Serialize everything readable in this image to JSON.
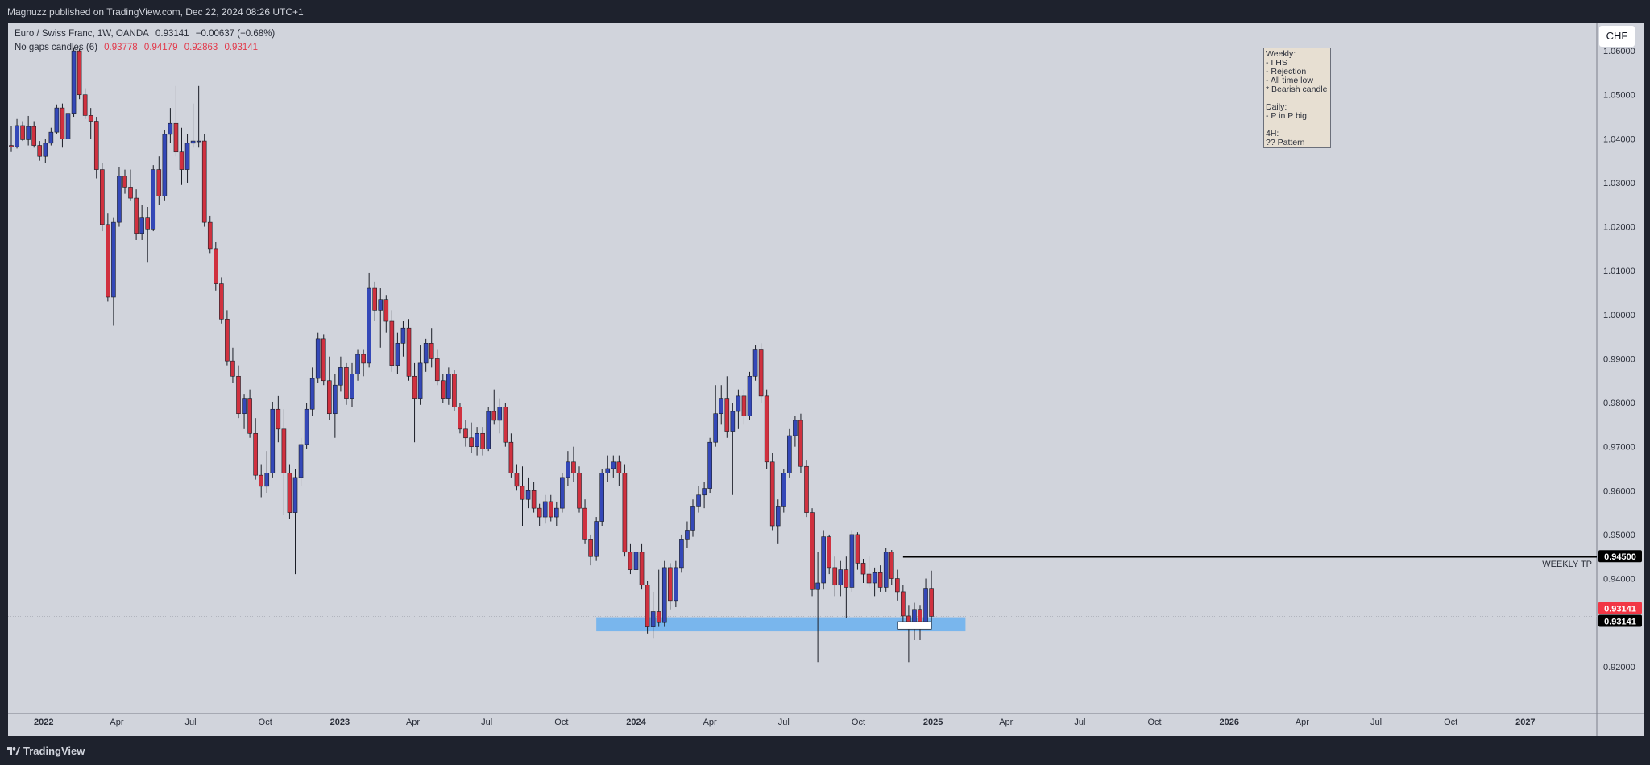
{
  "header": {
    "published": "Magnuzz published on TradingView.com, Dec 22, 2024 08:26 UTC+1"
  },
  "legend": {
    "symbol": "Euro / Swiss Franc, 1W, OANDA",
    "close": "0.93141",
    "change": "−0.00637 (−0.68%)",
    "indicator": "No gaps candles (6)",
    "o": "0.93778",
    "h": "0.94179",
    "l": "0.92863",
    "c": "0.93141"
  },
  "currency_button": "CHF",
  "note_text": "Weekly:\n- I HS\n- Rejection\n- All time low\n* Bearish candle\n\nDaily:\n- P in P big\n\n4H:\n?? Pattern",
  "footer": {
    "brand": "TradingView"
  },
  "colors": {
    "up": "#3448b8",
    "down": "#d0313f",
    "zone": "#6fb3ee",
    "background": "#d1d4dc",
    "price_label": "#f23645"
  },
  "chart_data": {
    "type": "candlestick",
    "symbol": "EURCHF",
    "timeframe": "1W",
    "ylim": [
      0.913,
      1.0635
    ],
    "y_ticks": [
      "1.06000",
      "1.05000",
      "1.04000",
      "1.03000",
      "1.02000",
      "1.01000",
      "1.00000",
      "0.99000",
      "0.98000",
      "0.97000",
      "0.96000",
      "0.95000",
      "0.94000",
      "0.93000",
      "0.92000"
    ],
    "x_ticks": [
      {
        "label": "2022",
        "date": "2022-01-01",
        "bold": true
      },
      {
        "label": "Apr",
        "date": "2022-04-01"
      },
      {
        "label": "Jul",
        "date": "2022-07-01"
      },
      {
        "label": "Oct",
        "date": "2022-10-01"
      },
      {
        "label": "2023",
        "date": "2023-01-01",
        "bold": true
      },
      {
        "label": "Apr",
        "date": "2023-04-01"
      },
      {
        "label": "Jul",
        "date": "2023-07-01"
      },
      {
        "label": "Oct",
        "date": "2023-10-01"
      },
      {
        "label": "2024",
        "date": "2024-01-01",
        "bold": true
      },
      {
        "label": "Apr",
        "date": "2024-04-01"
      },
      {
        "label": "Jul",
        "date": "2024-07-01"
      },
      {
        "label": "Oct",
        "date": "2024-10-01"
      },
      {
        "label": "2025",
        "date": "2025-01-01",
        "bold": true
      },
      {
        "label": "Apr",
        "date": "2025-04-01"
      },
      {
        "label": "Jul",
        "date": "2025-07-01"
      },
      {
        "label": "Oct",
        "date": "2025-10-01"
      },
      {
        "label": "2026",
        "date": "2026-01-01",
        "bold": true
      },
      {
        "label": "Apr",
        "date": "2026-04-01"
      },
      {
        "label": "Jul",
        "date": "2026-07-01"
      },
      {
        "label": "Oct",
        "date": "2026-10-01"
      },
      {
        "label": "2027",
        "date": "2027-01-01",
        "bold": true
      }
    ],
    "first_candle_date": "2021-11-22",
    "candles": [
      [
        1.0385,
        1.0428,
        1.037,
        1.0382
      ],
      [
        1.0382,
        1.0445,
        1.0378,
        1.043
      ],
      [
        1.043,
        1.044,
        1.0395,
        1.0398
      ],
      [
        1.0398,
        1.0452,
        1.0385,
        1.0428
      ],
      [
        1.0428,
        1.044,
        1.038,
        1.0385
      ],
      [
        1.0385,
        1.0395,
        1.035,
        1.036
      ],
      [
        1.036,
        1.04,
        1.0345,
        1.039
      ],
      [
        1.039,
        1.0425,
        1.0385,
        1.0415
      ],
      [
        1.0415,
        1.0478,
        1.041,
        1.047
      ],
      [
        1.047,
        1.048,
        1.038,
        1.04
      ],
      [
        1.04,
        1.046,
        1.0365,
        1.0458
      ],
      [
        1.0458,
        1.0608,
        1.045,
        1.06
      ],
      [
        1.06,
        1.0605,
        1.049,
        1.05
      ],
      [
        1.05,
        1.0515,
        1.0445,
        1.0453
      ],
      [
        1.0453,
        1.047,
        1.04,
        1.044
      ],
      [
        1.044,
        1.045,
        1.031,
        1.033
      ],
      [
        1.033,
        1.0345,
        1.019,
        1.0205
      ],
      [
        1.0205,
        1.023,
        1.003,
        1.004
      ],
      [
        1.004,
        1.022,
        0.9975,
        1.021
      ],
      [
        1.021,
        1.0335,
        1.02,
        1.0315
      ],
      [
        1.0315,
        1.033,
        1.0275,
        1.029
      ],
      [
        1.029,
        1.033,
        1.026,
        1.0265
      ],
      [
        1.0265,
        1.0285,
        1.017,
        1.0185
      ],
      [
        1.0185,
        1.025,
        1.017,
        1.022
      ],
      [
        1.022,
        1.0245,
        1.012,
        1.0195
      ],
      [
        1.0195,
        1.034,
        1.019,
        1.033
      ],
      [
        1.033,
        1.036,
        1.025,
        1.027
      ],
      [
        1.027,
        1.042,
        1.026,
        1.041
      ],
      [
        1.041,
        1.047,
        1.039,
        1.0435
      ],
      [
        1.0435,
        1.052,
        1.036,
        1.037
      ],
      [
        1.037,
        1.0425,
        1.0295,
        1.033
      ],
      [
        1.033,
        1.041,
        1.03,
        1.039
      ],
      [
        1.039,
        1.048,
        1.038,
        1.0395
      ],
      [
        1.0395,
        1.052,
        1.038,
        1.0395
      ],
      [
        1.0395,
        1.041,
        1.02,
        1.021
      ],
      [
        1.021,
        1.0225,
        1.014,
        1.015
      ],
      [
        1.015,
        1.0165,
        1.0055,
        1.007
      ],
      [
        1.007,
        1.0085,
        0.998,
        0.999
      ],
      [
        0.999,
        1.001,
        0.9885,
        0.9895
      ],
      [
        0.9895,
        0.9925,
        0.9845,
        0.986
      ],
      [
        0.986,
        0.9885,
        0.9765,
        0.9775
      ],
      [
        0.9775,
        0.982,
        0.974,
        0.981
      ],
      [
        0.981,
        0.983,
        0.972,
        0.973
      ],
      [
        0.973,
        0.9765,
        0.9625,
        0.9635
      ],
      [
        0.9635,
        0.966,
        0.9585,
        0.961
      ],
      [
        0.961,
        0.969,
        0.9595,
        0.964
      ],
      [
        0.964,
        0.9802,
        0.963,
        0.9785
      ],
      [
        0.9785,
        0.9815,
        0.971,
        0.974
      ],
      [
        0.974,
        0.9785,
        0.9545,
        0.964
      ],
      [
        0.964,
        0.966,
        0.9535,
        0.955
      ],
      [
        0.955,
        0.965,
        0.941,
        0.963
      ],
      [
        0.963,
        0.972,
        0.961,
        0.9705
      ],
      [
        0.9705,
        0.98,
        0.9695,
        0.9785
      ],
      [
        0.9785,
        0.988,
        0.977,
        0.9855
      ],
      [
        0.9855,
        0.996,
        0.9845,
        0.9945
      ],
      [
        0.9945,
        0.9955,
        0.984,
        0.985
      ],
      [
        0.985,
        0.9905,
        0.976,
        0.9775
      ],
      [
        0.9775,
        0.9865,
        0.972,
        0.984
      ],
      [
        0.984,
        0.9905,
        0.9825,
        0.988
      ],
      [
        0.988,
        0.989,
        0.9795,
        0.981
      ],
      [
        0.981,
        0.989,
        0.979,
        0.9865
      ],
      [
        0.9865,
        0.992,
        0.985,
        0.991
      ],
      [
        0.991,
        0.992,
        0.986,
        0.989
      ],
      [
        0.989,
        1.0095,
        0.988,
        1.006
      ],
      [
        1.006,
        1.0075,
        0.9985,
        1.001
      ],
      [
        1.001,
        1.006,
        0.9925,
        1.0035
      ],
      [
        1.0035,
        1.0045,
        0.996,
        0.9985
      ],
      [
        0.9985,
        1.001,
        0.987,
        0.9885
      ],
      [
        0.9885,
        0.996,
        0.9865,
        0.9935
      ],
      [
        0.9935,
        0.9985,
        0.9905,
        0.997
      ],
      [
        0.997,
        0.999,
        0.985,
        0.986
      ],
      [
        0.986,
        0.989,
        0.971,
        0.981
      ],
      [
        0.981,
        0.993,
        0.9795,
        0.989
      ],
      [
        0.989,
        0.9945,
        0.987,
        0.9935
      ],
      [
        0.9935,
        0.997,
        0.988,
        0.99
      ],
      [
        0.99,
        0.992,
        0.984,
        0.985
      ],
      [
        0.985,
        0.9865,
        0.98,
        0.981
      ],
      [
        0.981,
        0.988,
        0.9795,
        0.9865
      ],
      [
        0.9865,
        0.9875,
        0.978,
        0.979
      ],
      [
        0.979,
        0.98,
        0.973,
        0.974
      ],
      [
        0.974,
        0.976,
        0.97,
        0.972
      ],
      [
        0.972,
        0.9755,
        0.9685,
        0.97
      ],
      [
        0.97,
        0.9745,
        0.968,
        0.973
      ],
      [
        0.973,
        0.9745,
        0.968,
        0.9695
      ],
      [
        0.9695,
        0.979,
        0.969,
        0.978
      ],
      [
        0.978,
        0.983,
        0.975,
        0.976
      ],
      [
        0.976,
        0.981,
        0.973,
        0.979
      ],
      [
        0.979,
        0.98,
        0.97,
        0.971
      ],
      [
        0.971,
        0.973,
        0.963,
        0.964
      ],
      [
        0.964,
        0.966,
        0.96,
        0.961
      ],
      [
        0.961,
        0.9655,
        0.952,
        0.958
      ],
      [
        0.958,
        0.963,
        0.956,
        0.96
      ],
      [
        0.96,
        0.962,
        0.955,
        0.956
      ],
      [
        0.956,
        0.957,
        0.952,
        0.954
      ],
      [
        0.954,
        0.959,
        0.9525,
        0.9575
      ],
      [
        0.9575,
        0.959,
        0.953,
        0.954
      ],
      [
        0.954,
        0.9575,
        0.952,
        0.956
      ],
      [
        0.956,
        0.964,
        0.955,
        0.963
      ],
      [
        0.963,
        0.969,
        0.961,
        0.9665
      ],
      [
        0.9665,
        0.97,
        0.962,
        0.964
      ],
      [
        0.964,
        0.9655,
        0.955,
        0.956
      ],
      [
        0.956,
        0.958,
        0.948,
        0.949
      ],
      [
        0.949,
        0.95,
        0.943,
        0.945
      ],
      [
        0.945,
        0.954,
        0.944,
        0.953
      ],
      [
        0.953,
        0.965,
        0.952,
        0.964
      ],
      [
        0.964,
        0.968,
        0.962,
        0.965
      ],
      [
        0.965,
        0.968,
        0.963,
        0.9665
      ],
      [
        0.9665,
        0.968,
        0.961,
        0.964
      ],
      [
        0.964,
        0.966,
        0.945,
        0.946
      ],
      [
        0.946,
        0.948,
        0.941,
        0.942
      ],
      [
        0.942,
        0.949,
        0.94,
        0.946
      ],
      [
        0.946,
        0.948,
        0.9375,
        0.9385
      ],
      [
        0.9385,
        0.9395,
        0.9275,
        0.929
      ],
      [
        0.929,
        0.937,
        0.9265,
        0.9325
      ],
      [
        0.9325,
        0.942,
        0.929,
        0.93
      ],
      [
        0.93,
        0.944,
        0.929,
        0.9425
      ],
      [
        0.9425,
        0.9435,
        0.933,
        0.935
      ],
      [
        0.935,
        0.944,
        0.9335,
        0.9425
      ],
      [
        0.9425,
        0.95,
        0.9415,
        0.949
      ],
      [
        0.949,
        0.953,
        0.947,
        0.951
      ],
      [
        0.951,
        0.958,
        0.9495,
        0.9565
      ],
      [
        0.9565,
        0.961,
        0.955,
        0.959
      ],
      [
        0.959,
        0.962,
        0.956,
        0.9605
      ],
      [
        0.9605,
        0.972,
        0.9595,
        0.971
      ],
      [
        0.971,
        0.984,
        0.97,
        0.9775
      ],
      [
        0.9775,
        0.984,
        0.975,
        0.981
      ],
      [
        0.981,
        0.986,
        0.972,
        0.9735
      ],
      [
        0.9735,
        0.98,
        0.959,
        0.978
      ],
      [
        0.978,
        0.983,
        0.974,
        0.9815
      ],
      [
        0.9815,
        0.983,
        0.975,
        0.977
      ],
      [
        0.977,
        0.987,
        0.976,
        0.986
      ],
      [
        0.986,
        0.993,
        0.985,
        0.992
      ],
      [
        0.992,
        0.9935,
        0.98,
        0.9815
      ],
      [
        0.9815,
        0.983,
        0.965,
        0.9665
      ],
      [
        0.9665,
        0.9685,
        0.951,
        0.952
      ],
      [
        0.952,
        0.958,
        0.948,
        0.9565
      ],
      [
        0.9565,
        0.965,
        0.955,
        0.964
      ],
      [
        0.964,
        0.974,
        0.963,
        0.9725
      ],
      [
        0.9725,
        0.977,
        0.97,
        0.976
      ],
      [
        0.976,
        0.9775,
        0.964,
        0.9655
      ],
      [
        0.9655,
        0.967,
        0.954,
        0.955
      ],
      [
        0.955,
        0.956,
        0.936,
        0.9375
      ],
      [
        0.9375,
        0.946,
        0.921,
        0.939
      ],
      [
        0.939,
        0.951,
        0.9375,
        0.9495
      ],
      [
        0.9495,
        0.95,
        0.941,
        0.9425
      ],
      [
        0.9425,
        0.945,
        0.936,
        0.9385
      ],
      [
        0.9385,
        0.944,
        0.936,
        0.942
      ],
      [
        0.942,
        0.945,
        0.931,
        0.938
      ],
      [
        0.938,
        0.951,
        0.937,
        0.95
      ],
      [
        0.95,
        0.9505,
        0.942,
        0.9435
      ],
      [
        0.9435,
        0.9445,
        0.939,
        0.941
      ],
      [
        0.941,
        0.945,
        0.938,
        0.939
      ],
      [
        0.939,
        0.9425,
        0.936,
        0.9415
      ],
      [
        0.9415,
        0.943,
        0.937,
        0.938
      ],
      [
        0.938,
        0.947,
        0.937,
        0.946
      ],
      [
        0.946,
        0.9465,
        0.9385,
        0.94
      ],
      [
        0.94,
        0.942,
        0.935,
        0.937
      ],
      [
        0.937,
        0.9385,
        0.9295,
        0.9315
      ],
      [
        0.9315,
        0.934,
        0.921,
        0.929
      ],
      [
        0.929,
        0.9345,
        0.926,
        0.933
      ],
      [
        0.933,
        0.934,
        0.926,
        0.93
      ],
      [
        0.93,
        0.94,
        0.929,
        0.9378
      ],
      [
        0.93778,
        0.94179,
        0.92863,
        0.93141
      ]
    ],
    "support_zone": {
      "from_date": "2023-11-13",
      "to_date": "2025-02-10",
      "low": 0.928,
      "high": 0.9312
    },
    "target_line": {
      "label": "WEEKLY TP",
      "value": 0.945,
      "value_label": "0.94500",
      "from_date": "2024-11-25"
    },
    "marker_box": {
      "from_date": "2024-11-18",
      "to_date": "2024-12-30",
      "low": 0.9285,
      "high": 0.9302
    },
    "last_price_labels": [
      "0.93141",
      "0.93141"
    ],
    "last_price": 0.93141
  }
}
